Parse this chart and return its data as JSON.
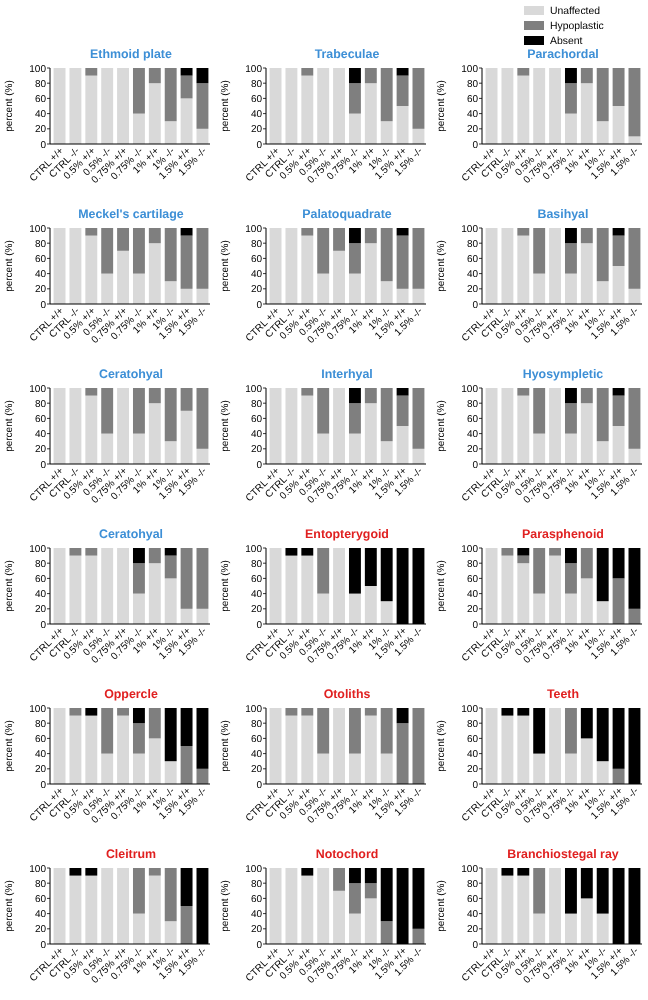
{
  "chart_data": [
    {
      "type": "bar",
      "stacked": true,
      "title": "Ethmoid plate",
      "ylabel": "percent (%)",
      "legend": "top right",
      "categories": [
        "CTRL +/+",
        "CTRL -/-",
        "0.5% +/+",
        "0.5% -/-",
        "0.75% +/+",
        "0.75% -/-",
        "1% +/+",
        "1% -/-",
        "1.5% +/+",
        "1.5% -/-"
      ],
      "ylim": [
        0,
        100
      ],
      "yticks": [
        0,
        20,
        40,
        60,
        80,
        100
      ],
      "series": [
        {
          "name": "Unaffected",
          "color": "#d9d9d9",
          "values": [
            100,
            100,
            90,
            100,
            100,
            40,
            80,
            30,
            60,
            20
          ]
        },
        {
          "name": "Hypoplastic",
          "color": "#7f7f7f",
          "values": [
            0,
            0,
            10,
            0,
            0,
            60,
            20,
            70,
            30,
            60
          ]
        },
        {
          "name": "Absent",
          "color": "#000000",
          "values": [
            0,
            0,
            0,
            0,
            0,
            0,
            0,
            0,
            10,
            20
          ]
        }
      ]
    },
    {
      "type": "bar",
      "stacked": true,
      "title": "Trabeculae",
      "ylabel": "percent (%)",
      "categories": [
        "CTRL +/+",
        "CTRL -/-",
        "0.5% +/+",
        "0.5% -/-",
        "0.75% +/+",
        "0.75% -/-",
        "1% +/+",
        "1% -/-",
        "1.5% +/+",
        "1.5% -/-"
      ],
      "ylim": [
        0,
        100
      ],
      "yticks": [
        0,
        20,
        40,
        60,
        80,
        100
      ],
      "series": [
        {
          "color": "#d9d9d9",
          "values": [
            100,
            100,
            90,
            100,
            100,
            40,
            80,
            30,
            50,
            20
          ]
        },
        {
          "color": "#7f7f7f",
          "values": [
            0,
            0,
            10,
            0,
            0,
            40,
            20,
            70,
            40,
            80
          ]
        },
        {
          "color": "#000000",
          "values": [
            0,
            0,
            0,
            0,
            0,
            20,
            0,
            0,
            10,
            0
          ]
        }
      ]
    },
    {
      "type": "bar",
      "stacked": true,
      "title": "Parachordal",
      "ylabel": "percent (%)",
      "categories": [
        "CTRL +/+",
        "CTRL -/-",
        "0.5% +/+",
        "0.5% -/-",
        "0.75% +/+",
        "0.75% -/-",
        "1% +/+",
        "1% -/-",
        "1.5% +/+",
        "1.5% -/-"
      ],
      "ylim": [
        0,
        100
      ],
      "yticks": [
        0,
        20,
        40,
        60,
        80,
        100
      ],
      "series": [
        {
          "color": "#d9d9d9",
          "values": [
            100,
            100,
            90,
            100,
            100,
            40,
            80,
            30,
            50,
            10
          ]
        },
        {
          "color": "#7f7f7f",
          "values": [
            0,
            0,
            10,
            0,
            0,
            40,
            20,
            70,
            50,
            90
          ]
        },
        {
          "color": "#000000",
          "values": [
            0,
            0,
            0,
            0,
            0,
            20,
            0,
            0,
            0,
            0
          ]
        }
      ]
    },
    {
      "type": "bar",
      "stacked": true,
      "title": "Meckel's cartilage",
      "ylabel": "percent (%)",
      "categories": [
        "CTRL +/+",
        "CTRL -/-",
        "0.5% +/+",
        "0.5% -/-",
        "0.75% +/+",
        "0.75% -/-",
        "1% +/+",
        "1% -/-",
        "1.5% +/+",
        "1.5% -/-"
      ],
      "ylim": [
        0,
        100
      ],
      "yticks": [
        0,
        20,
        40,
        60,
        80,
        100
      ],
      "series": [
        {
          "color": "#d9d9d9",
          "values": [
            100,
            100,
            90,
            40,
            70,
            40,
            80,
            30,
            20,
            20
          ]
        },
        {
          "color": "#7f7f7f",
          "values": [
            0,
            0,
            10,
            60,
            30,
            60,
            20,
            70,
            70,
            80
          ]
        },
        {
          "color": "#000000",
          "values": [
            0,
            0,
            0,
            0,
            0,
            0,
            0,
            0,
            10,
            0
          ]
        }
      ]
    },
    {
      "type": "bar",
      "stacked": true,
      "title": "Palatoquadrate",
      "ylabel": "percent (%)",
      "categories": [
        "CTRL +/+",
        "CTRL -/-",
        "0.5% +/+",
        "0.5% -/-",
        "0.75% +/+",
        "0.75% -/-",
        "1% +/+",
        "1% -/-",
        "1.5% +/+",
        "1.5% -/-"
      ],
      "ylim": [
        0,
        100
      ],
      "yticks": [
        0,
        20,
        40,
        60,
        80,
        100
      ],
      "series": [
        {
          "color": "#d9d9d9",
          "values": [
            100,
            100,
            90,
            40,
            70,
            40,
            80,
            30,
            20,
            20
          ]
        },
        {
          "color": "#7f7f7f",
          "values": [
            0,
            0,
            10,
            60,
            30,
            40,
            20,
            70,
            70,
            80
          ]
        },
        {
          "color": "#000000",
          "values": [
            0,
            0,
            0,
            0,
            0,
            20,
            0,
            0,
            10,
            0
          ]
        }
      ]
    },
    {
      "type": "bar",
      "stacked": true,
      "title": "Basihyal",
      "ylabel": "percent (%)",
      "categories": [
        "CTRL +/+",
        "CTRL -/-",
        "0.5% +/+",
        "0.5% -/-",
        "0.75% +/+",
        "0.75% -/-",
        "1% +/+",
        "1% -/-",
        "1.5% +/+",
        "1.5% -/-"
      ],
      "ylim": [
        0,
        100
      ],
      "yticks": [
        0,
        20,
        40,
        60,
        80,
        100
      ],
      "series": [
        {
          "color": "#d9d9d9",
          "values": [
            100,
            100,
            90,
            40,
            100,
            40,
            80,
            30,
            50,
            20
          ]
        },
        {
          "color": "#7f7f7f",
          "values": [
            0,
            0,
            10,
            60,
            0,
            40,
            20,
            70,
            40,
            80
          ]
        },
        {
          "color": "#000000",
          "values": [
            0,
            0,
            0,
            0,
            0,
            20,
            0,
            0,
            10,
            0
          ]
        }
      ]
    },
    {
      "type": "bar",
      "stacked": true,
      "title": "Ceratohyal",
      "ylabel": "percent (%)",
      "categories": [
        "CTRL +/+",
        "CTRL -/-",
        "0.5% +/+",
        "0.5% -/-",
        "0.75% +/+",
        "0.75% -/-",
        "1% +/+",
        "1% -/-",
        "1.5% +/+",
        "1.5% -/-"
      ],
      "ylim": [
        0,
        100
      ],
      "yticks": [
        0,
        20,
        40,
        60,
        80,
        100
      ],
      "series": [
        {
          "color": "#d9d9d9",
          "values": [
            100,
            100,
            90,
            40,
            100,
            40,
            80,
            30,
            70,
            20
          ]
        },
        {
          "color": "#7f7f7f",
          "values": [
            0,
            0,
            10,
            60,
            0,
            60,
            20,
            70,
            30,
            80
          ]
        },
        {
          "color": "#000000",
          "values": [
            0,
            0,
            0,
            0,
            0,
            0,
            0,
            0,
            0,
            0
          ]
        }
      ]
    },
    {
      "type": "bar",
      "stacked": true,
      "title": "Interhyal",
      "ylabel": "percent (%)",
      "categories": [
        "CTRL +/+",
        "CTRL -/-",
        "0.5% +/+",
        "0.5% -/-",
        "0.75% +/+",
        "0.75% -/-",
        "1% +/+",
        "1% -/-",
        "1.5% +/+",
        "1.5% -/-"
      ],
      "ylim": [
        0,
        100
      ],
      "yticks": [
        0,
        20,
        40,
        60,
        80,
        100
      ],
      "series": [
        {
          "color": "#d9d9d9",
          "values": [
            100,
            100,
            90,
            40,
            100,
            40,
            80,
            30,
            50,
            20
          ]
        },
        {
          "color": "#7f7f7f",
          "values": [
            0,
            0,
            10,
            60,
            0,
            40,
            20,
            70,
            40,
            80
          ]
        },
        {
          "color": "#000000",
          "values": [
            0,
            0,
            0,
            0,
            0,
            20,
            0,
            0,
            10,
            0
          ]
        }
      ]
    },
    {
      "type": "bar",
      "stacked": true,
      "title": "Hyosympletic",
      "ylabel": "percent (%)",
      "categories": [
        "CTRL +/+",
        "CTRL -/-",
        "0.5% +/+",
        "0.5% -/-",
        "0.75% +/+",
        "0.75% -/-",
        "1% +/+",
        "1% -/-",
        "1.5% +/+",
        "1.5% -/-"
      ],
      "ylim": [
        0,
        100
      ],
      "yticks": [
        0,
        20,
        40,
        60,
        80,
        100
      ],
      "series": [
        {
          "color": "#d9d9d9",
          "values": [
            100,
            100,
            90,
            40,
            100,
            40,
            80,
            30,
            50,
            20
          ]
        },
        {
          "color": "#7f7f7f",
          "values": [
            0,
            0,
            10,
            60,
            0,
            40,
            20,
            70,
            40,
            80
          ]
        },
        {
          "color": "#000000",
          "values": [
            0,
            0,
            0,
            0,
            0,
            20,
            0,
            0,
            10,
            0
          ]
        }
      ]
    },
    {
      "type": "bar",
      "stacked": true,
      "title": "Ceratohyal",
      "ylabel": "percent (%)",
      "categories": [
        "CTRL +/+",
        "CTRL -/-",
        "0.5% +/+",
        "0.5% -/-",
        "0.75% +/+",
        "0.75% -/-",
        "1% +/+",
        "1% -/-",
        "1.5% +/+",
        "1.5% -/-"
      ],
      "ylim": [
        0,
        100
      ],
      "yticks": [
        0,
        20,
        40,
        60,
        80,
        100
      ],
      "series": [
        {
          "color": "#d9d9d9",
          "values": [
            100,
            90,
            90,
            100,
            100,
            40,
            80,
            60,
            20,
            20
          ]
        },
        {
          "color": "#7f7f7f",
          "values": [
            0,
            10,
            10,
            0,
            0,
            40,
            20,
            30,
            80,
            80
          ]
        },
        {
          "color": "#000000",
          "values": [
            0,
            0,
            0,
            0,
            0,
            20,
            0,
            10,
            0,
            0
          ]
        }
      ]
    },
    {
      "type": "bar",
      "stacked": true,
      "title": "Entopterygoid",
      "ylabel": "percent (%)",
      "categories": [
        "CTRL +/+",
        "CTRL -/-",
        "0.5% +/+",
        "0.5% -/-",
        "0.75% +/+",
        "0.75% -/-",
        "1% +/+",
        "1% -/-",
        "1.5% +/+",
        "1.5% -/-"
      ],
      "ylim": [
        0,
        100
      ],
      "yticks": [
        0,
        20,
        40,
        60,
        80,
        100
      ],
      "series": [
        {
          "color": "#d9d9d9",
          "values": [
            100,
            90,
            90,
            40,
            100,
            40,
            50,
            30,
            0,
            0
          ]
        },
        {
          "color": "#7f7f7f",
          "values": [
            0,
            0,
            0,
            60,
            0,
            0,
            0,
            0,
            0,
            0
          ]
        },
        {
          "color": "#000000",
          "values": [
            0,
            10,
            10,
            0,
            0,
            60,
            50,
            70,
            100,
            100
          ]
        }
      ]
    },
    {
      "type": "bar",
      "stacked": true,
      "title": "Parasphenoid",
      "ylabel": "percent (%)",
      "categories": [
        "CTRL +/+",
        "CTRL -/-",
        "0.5% +/+",
        "0.5% -/-",
        "0.75% +/+",
        "0.75% -/-",
        "1% +/+",
        "1% -/-",
        "1.5% +/+",
        "1.5% -/-"
      ],
      "ylim": [
        0,
        100
      ],
      "yticks": [
        0,
        20,
        40,
        60,
        80,
        100
      ],
      "series": [
        {
          "color": "#d9d9d9",
          "values": [
            100,
            90,
            80,
            40,
            90,
            40,
            60,
            30,
            0,
            0
          ]
        },
        {
          "color": "#7f7f7f",
          "values": [
            0,
            10,
            10,
            60,
            10,
            40,
            40,
            0,
            60,
            20
          ]
        },
        {
          "color": "#000000",
          "values": [
            0,
            0,
            10,
            0,
            0,
            20,
            0,
            70,
            40,
            80
          ]
        }
      ]
    },
    {
      "type": "bar",
      "stacked": true,
      "title": "Oppercle",
      "ylabel": "percent (%)",
      "categories": [
        "CTRL +/+",
        "CTRL -/-",
        "0.5% +/+",
        "0.5% -/-",
        "0.75% +/+",
        "0.75% -/-",
        "1% +/+",
        "1% -/-",
        "1.5% +/+",
        "1.5% -/-"
      ],
      "ylim": [
        0,
        100
      ],
      "yticks": [
        0,
        20,
        40,
        60,
        80,
        100
      ],
      "series": [
        {
          "color": "#d9d9d9",
          "values": [
            100,
            90,
            90,
            40,
            90,
            40,
            60,
            30,
            0,
            0
          ]
        },
        {
          "color": "#7f7f7f",
          "values": [
            0,
            10,
            0,
            60,
            10,
            40,
            40,
            0,
            50,
            20
          ]
        },
        {
          "color": "#000000",
          "values": [
            0,
            0,
            10,
            0,
            0,
            20,
            0,
            70,
            50,
            80
          ]
        }
      ]
    },
    {
      "type": "bar",
      "stacked": true,
      "title": "Otoliths",
      "ylabel": "percent (%)",
      "categories": [
        "CTRL +/+",
        "CTRL -/-",
        "0.5% +/+",
        "0.5% -/-",
        "0.75% +/+",
        "0.75% -/-",
        "1% +/+",
        "1% -/-",
        "1.5% +/+",
        "1.5% -/-"
      ],
      "ylim": [
        0,
        100
      ],
      "yticks": [
        0,
        20,
        40,
        60,
        80,
        100
      ],
      "series": [
        {
          "color": "#d9d9d9",
          "values": [
            100,
            90,
            90,
            40,
            100,
            40,
            90,
            40,
            0,
            0
          ]
        },
        {
          "color": "#7f7f7f",
          "values": [
            0,
            10,
            10,
            60,
            0,
            60,
            10,
            60,
            80,
            100
          ]
        },
        {
          "color": "#000000",
          "values": [
            0,
            0,
            0,
            0,
            0,
            0,
            0,
            0,
            20,
            0
          ]
        }
      ]
    },
    {
      "type": "bar",
      "stacked": true,
      "title": "Teeth",
      "ylabel": "percent (%)",
      "categories": [
        "CTRL +/+",
        "CTRL -/-",
        "0.5% +/+",
        "0.5% -/-",
        "0.75% +/+",
        "0.75% -/-",
        "1% +/+",
        "1% -/-",
        "1.5% +/+",
        "1.5% -/-"
      ],
      "ylim": [
        0,
        100
      ],
      "yticks": [
        0,
        20,
        40,
        60,
        80,
        100
      ],
      "series": [
        {
          "color": "#d9d9d9",
          "values": [
            100,
            90,
            90,
            40,
            100,
            40,
            60,
            30,
            0,
            0
          ]
        },
        {
          "color": "#7f7f7f",
          "values": [
            0,
            0,
            0,
            0,
            0,
            60,
            0,
            0,
            20,
            0
          ]
        },
        {
          "color": "#000000",
          "values": [
            0,
            10,
            10,
            60,
            0,
            0,
            40,
            70,
            80,
            100
          ]
        }
      ]
    },
    {
      "type": "bar",
      "stacked": true,
      "title": "Cleitrum",
      "ylabel": "percent (%)",
      "categories": [
        "CTRL +/+",
        "CTRL -/-",
        "0.5% +/+",
        "0.5% -/-",
        "0.75% +/+",
        "0.75% -/-",
        "1% +/+",
        "1% -/-",
        "1.5% +/+",
        "1.5% -/-"
      ],
      "ylim": [
        0,
        100
      ],
      "yticks": [
        0,
        20,
        40,
        60,
        80,
        100
      ],
      "series": [
        {
          "color": "#d9d9d9",
          "values": [
            100,
            90,
            90,
            100,
            100,
            40,
            90,
            30,
            0,
            0
          ]
        },
        {
          "color": "#7f7f7f",
          "values": [
            0,
            0,
            0,
            0,
            0,
            60,
            10,
            70,
            50,
            0
          ]
        },
        {
          "color": "#000000",
          "values": [
            0,
            10,
            10,
            0,
            0,
            0,
            0,
            0,
            50,
            100
          ]
        }
      ]
    },
    {
      "type": "bar",
      "stacked": true,
      "title": "Notochord",
      "ylabel": "percent (%)",
      "categories": [
        "CTRL +/+",
        "CTRL -/-",
        "0.5% +/+",
        "0.5% -/-",
        "0.75% +/+",
        "0.75% -/-",
        "1% +/+",
        "1% -/-",
        "1.5% +/+",
        "1.5% -/-"
      ],
      "ylim": [
        0,
        100
      ],
      "yticks": [
        0,
        20,
        40,
        60,
        80,
        100
      ],
      "series": [
        {
          "color": "#d9d9d9",
          "values": [
            100,
            100,
            90,
            100,
            70,
            40,
            60,
            0,
            0,
            0
          ]
        },
        {
          "color": "#7f7f7f",
          "values": [
            0,
            0,
            0,
            0,
            30,
            40,
            20,
            30,
            0,
            20
          ]
        },
        {
          "color": "#000000",
          "values": [
            0,
            0,
            10,
            0,
            0,
            20,
            20,
            70,
            100,
            80
          ]
        }
      ]
    },
    {
      "type": "bar",
      "stacked": true,
      "title": "Branchiostegal ray",
      "ylabel": "percent (%)",
      "categories": [
        "CTRL +/+",
        "CTRL -/-",
        "0.5% +/+",
        "0.5% -/-",
        "0.75% +/+",
        "0.75% -/-",
        "1% +/+",
        "1% -/-",
        "1.5% +/+",
        "1.5% -/-"
      ],
      "ylim": [
        0,
        100
      ],
      "yticks": [
        0,
        20,
        40,
        60,
        80,
        100
      ],
      "series": [
        {
          "color": "#d9d9d9",
          "values": [
            100,
            90,
            90,
            40,
            100,
            40,
            60,
            40,
            0,
            0
          ]
        },
        {
          "color": "#7f7f7f",
          "values": [
            0,
            0,
            0,
            60,
            0,
            0,
            0,
            0,
            0,
            0
          ]
        },
        {
          "color": "#000000",
          "values": [
            0,
            10,
            10,
            0,
            0,
            60,
            40,
            60,
            100,
            100
          ]
        }
      ]
    }
  ]
}
